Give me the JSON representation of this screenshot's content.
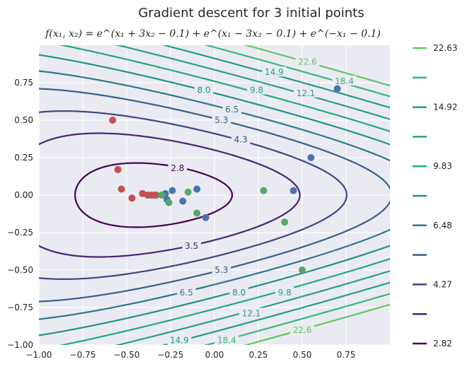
{
  "chart_data": {
    "type": "contour",
    "title": "Gradient descent for 3 initial points",
    "subtitle": "f(x₁, x₂) = e^(x₁ + 3x₂ − 0.1) + e^(x₁ − 3x₂ − 0.1) + e^(−x₁ − 0.1)",
    "xlim": [
      -1.0,
      1.0
    ],
    "ylim": [
      -1.0,
      1.0
    ],
    "x_ticks": [
      "−1.00",
      "−0.75",
      "−0.50",
      "−0.25",
      "0.00",
      "0.25",
      "0.50",
      "0.75"
    ],
    "y_ticks": [
      "−1.00",
      "−0.75",
      "−0.50",
      "−0.25",
      "0.00",
      "0.25",
      "0.50",
      "0.75"
    ],
    "x_tick_values": [
      -1.0,
      -0.75,
      -0.5,
      -0.25,
      0.0,
      0.25,
      0.5,
      0.75
    ],
    "y_tick_values": [
      -1.0,
      -0.75,
      -0.5,
      -0.25,
      0.0,
      0.25,
      0.5,
      0.75
    ],
    "grid": true,
    "contour_levels": [
      2.82,
      3.5,
      4.27,
      5.3,
      6.48,
      8.0,
      9.83,
      12.1,
      14.92,
      18.4,
      22.63
    ],
    "contour_colors": [
      "#440154",
      "#482475",
      "#414487",
      "#355f8d",
      "#2a788e",
      "#21918c",
      "#22a884",
      "#2a9d8f",
      "#1f9e89",
      "#35b779",
      "#5ec962"
    ],
    "contour_labels": [
      {
        "text": "2.8",
        "x": -0.21,
        "y": 0.18
      },
      {
        "text": "3.5",
        "x": -0.13,
        "y": -0.34
      },
      {
        "text": "4.3",
        "x": 0.15,
        "y": 0.37
      },
      {
        "text": "5.3",
        "x": 0.04,
        "y": 0.5
      },
      {
        "text": "5.3",
        "x": 0.04,
        "y": -0.5
      },
      {
        "text": "6.5",
        "x": 0.1,
        "y": 0.57
      },
      {
        "text": "6.5",
        "x": -0.16,
        "y": -0.65
      },
      {
        "text": "8.0",
        "x": -0.06,
        "y": 0.7
      },
      {
        "text": "8.0",
        "x": 0.14,
        "y": -0.65
      },
      {
        "text": "9.8",
        "x": 0.24,
        "y": 0.7
      },
      {
        "text": "9.8",
        "x": 0.4,
        "y": -0.65
      },
      {
        "text": "12.1",
        "x": 0.52,
        "y": 0.68
      },
      {
        "text": "12.1",
        "x": 0.21,
        "y": -0.79
      },
      {
        "text": "14.9",
        "x": 0.34,
        "y": 0.82
      },
      {
        "text": "14.9",
        "x": -0.2,
        "y": -0.97
      },
      {
        "text": "18.4",
        "x": 0.74,
        "y": 0.76
      },
      {
        "text": "18.4",
        "x": 0.07,
        "y": -0.97
      },
      {
        "text": "22.6",
        "x": 0.53,
        "y": 0.89
      },
      {
        "text": "22.6",
        "x": 0.5,
        "y": -0.9
      }
    ],
    "series": [
      {
        "color": "#4c72b0",
        "points": [
          [
            0.7,
            0.71
          ],
          [
            0.55,
            0.25
          ],
          [
            0.45,
            0.03
          ],
          [
            -0.1,
            0.04
          ],
          [
            -0.18,
            -0.04
          ],
          [
            -0.24,
            0.03
          ],
          [
            -0.28,
            0.01
          ],
          [
            -0.3,
            0.0
          ],
          [
            -0.27,
            -0.03
          ],
          [
            -0.05,
            -0.15
          ]
        ]
      },
      {
        "color": "#55a868",
        "points": [
          [
            0.5,
            -0.5
          ],
          [
            0.4,
            -0.18
          ],
          [
            0.28,
            0.03
          ],
          [
            -0.15,
            0.02
          ],
          [
            -0.1,
            -0.12
          ],
          [
            -0.26,
            -0.05
          ],
          [
            -0.3,
            0.0
          ],
          [
            -0.33,
            0.0
          ]
        ]
      },
      {
        "color": "#c44e52",
        "points": [
          [
            -0.58,
            0.5
          ],
          [
            -0.55,
            0.17
          ],
          [
            -0.53,
            0.04
          ],
          [
            -0.47,
            -0.02
          ],
          [
            -0.41,
            0.01
          ],
          [
            -0.38,
            0.0
          ],
          [
            -0.36,
            0.0
          ],
          [
            -0.34,
            0.0
          ]
        ]
      }
    ],
    "colorbar": {
      "tick_labels": [
        "22.63",
        "14.92",
        "9.83",
        "6.48",
        "4.27",
        "2.82"
      ],
      "levels": [
        2.82,
        3.5,
        4.27,
        5.3,
        6.48,
        8.0,
        9.83,
        12.1,
        14.92,
        18.4,
        22.63
      ]
    }
  }
}
